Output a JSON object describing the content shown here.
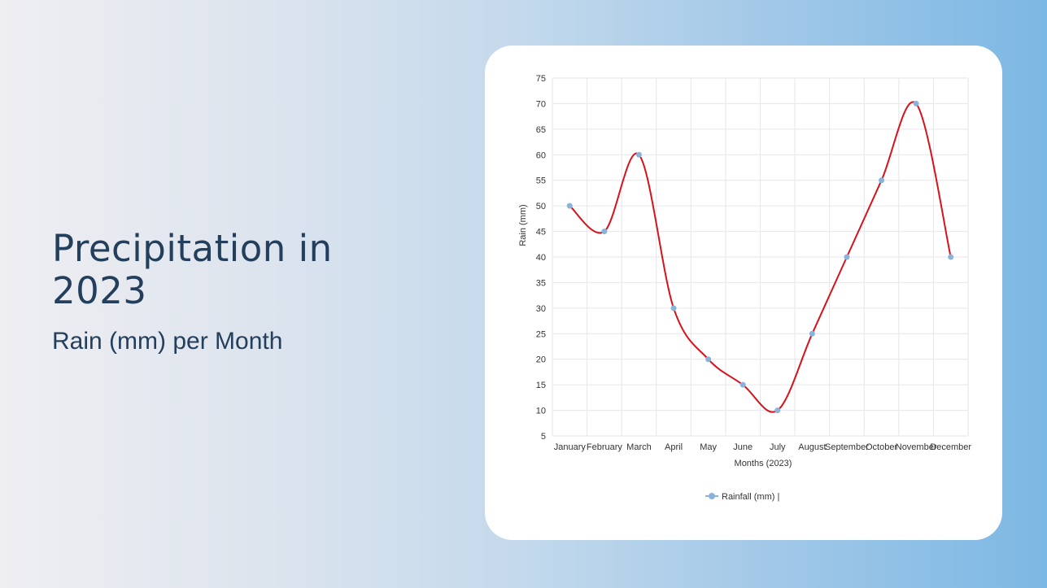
{
  "slide": {
    "title": "Precipitation in 2023",
    "subtitle": "Rain (mm) per Month"
  },
  "colors": {
    "line": "#d6121a",
    "point": "#8ab3dc",
    "text": "#243f5c"
  },
  "chart_data": {
    "type": "line",
    "categories": [
      "January",
      "February",
      "March",
      "April",
      "May",
      "June",
      "July",
      "August",
      "September",
      "October",
      "November",
      "December"
    ],
    "series": [
      {
        "name": "Rainfall (mm)",
        "values": [
          50,
          45,
          60,
          30,
          20,
          15,
          10,
          25,
          40,
          55,
          70,
          40
        ]
      }
    ],
    "xlabel": "Months (2023)",
    "ylabel": "Rain (mm)",
    "ylim": [
      5,
      75
    ],
    "yticks": [
      5,
      10,
      15,
      20,
      25,
      30,
      35,
      40,
      45,
      50,
      55,
      60,
      65,
      70,
      75
    ],
    "grid": true,
    "legend": {
      "position": "bottom",
      "label": "Rainfall (mm) |"
    },
    "smooth": true
  }
}
